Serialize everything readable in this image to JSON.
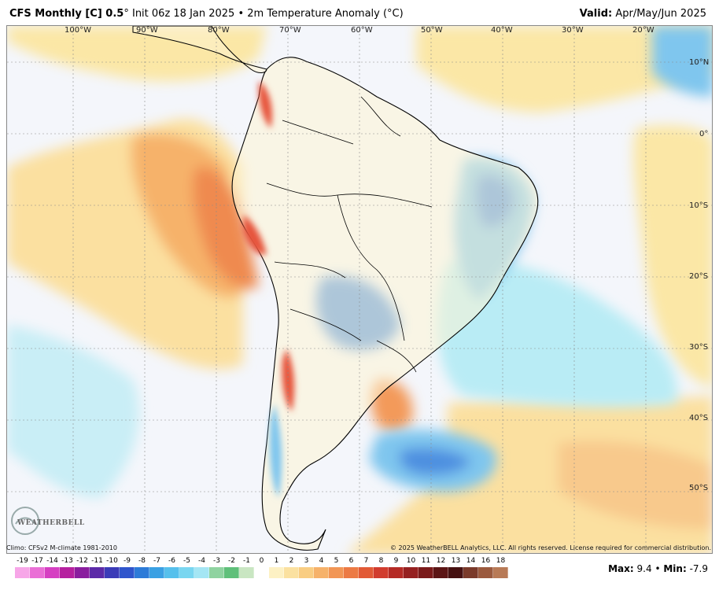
{
  "header": {
    "model": "CFS Monthly [C] 0.5",
    "degree": "°",
    "init": "Init 06z 18 Jan 2025",
    "bullet": "•",
    "field": "2m Temperature Anomaly (°C)",
    "valid_label": "Valid:",
    "valid_value": "Apr/May/Jun 2025"
  },
  "map": {
    "lon_labels": [
      "100°W",
      "90°W",
      "80°W",
      "70°W",
      "60°W",
      "50°W",
      "40°W",
      "30°W",
      "20°W"
    ],
    "lat_labels": [
      "10°N",
      "0°",
      "10°S",
      "20°S",
      "30°S",
      "40°S",
      "50°S"
    ],
    "colors": {
      "ocean_base": "#f4f6fb",
      "warm_light": "#fbe7a6",
      "warm_mid": "#f8c98c",
      "warm_orange": "#f39a5a",
      "warm_red": "#e6533a",
      "cool_light": "#b9ecf5",
      "cool_mid": "#7fc6ee",
      "cool_blue": "#4d8fe0",
      "coast": "#000000"
    }
  },
  "footer": {
    "climo": "Climo: CFSv2 M-climate 1981-2010",
    "copyright": "© 2025 WeatherBELL Analytics, LLC. All rights reserved. License required for commercial distribution.",
    "logo_text": "WEATHERBELL",
    "max_label": "Max:",
    "max_value": "9.4",
    "min_label": "Min:",
    "min_value": "-7.9",
    "separator": "•"
  },
  "colorbar": {
    "ticks": [
      "-19",
      "-17",
      "-14",
      "-13",
      "-12",
      "-11",
      "-10",
      "-9",
      "-8",
      "-7",
      "-6",
      "-5",
      "-4",
      "-3",
      "-2",
      "-1",
      "0",
      "1",
      "2",
      "3",
      "4",
      "5",
      "6",
      "7",
      "8",
      "9",
      "10",
      "11",
      "12",
      "13",
      "14",
      "16",
      "18"
    ],
    "colors": [
      "#f7a6e8",
      "#ea6fd6",
      "#d63fc2",
      "#b6209f",
      "#8a1d9e",
      "#5c2aa8",
      "#3b3bb8",
      "#2f55cc",
      "#2d7bd8",
      "#3aa0e3",
      "#56c0ec",
      "#79d6f0",
      "#a4e6f4",
      "#8fd3a0",
      "#5fc07a",
      "#c9e6c2",
      "#ffffff",
      "#fdf1c4",
      "#fbe1a0",
      "#f9cd82",
      "#f6b26a",
      "#f29655",
      "#ec7a44",
      "#e25a36",
      "#d13c2e",
      "#b52a25",
      "#962020",
      "#7a1a1a",
      "#5c1515",
      "#461111",
      "#7a3a2a",
      "#9b5a3e",
      "#b87a56"
    ]
  }
}
